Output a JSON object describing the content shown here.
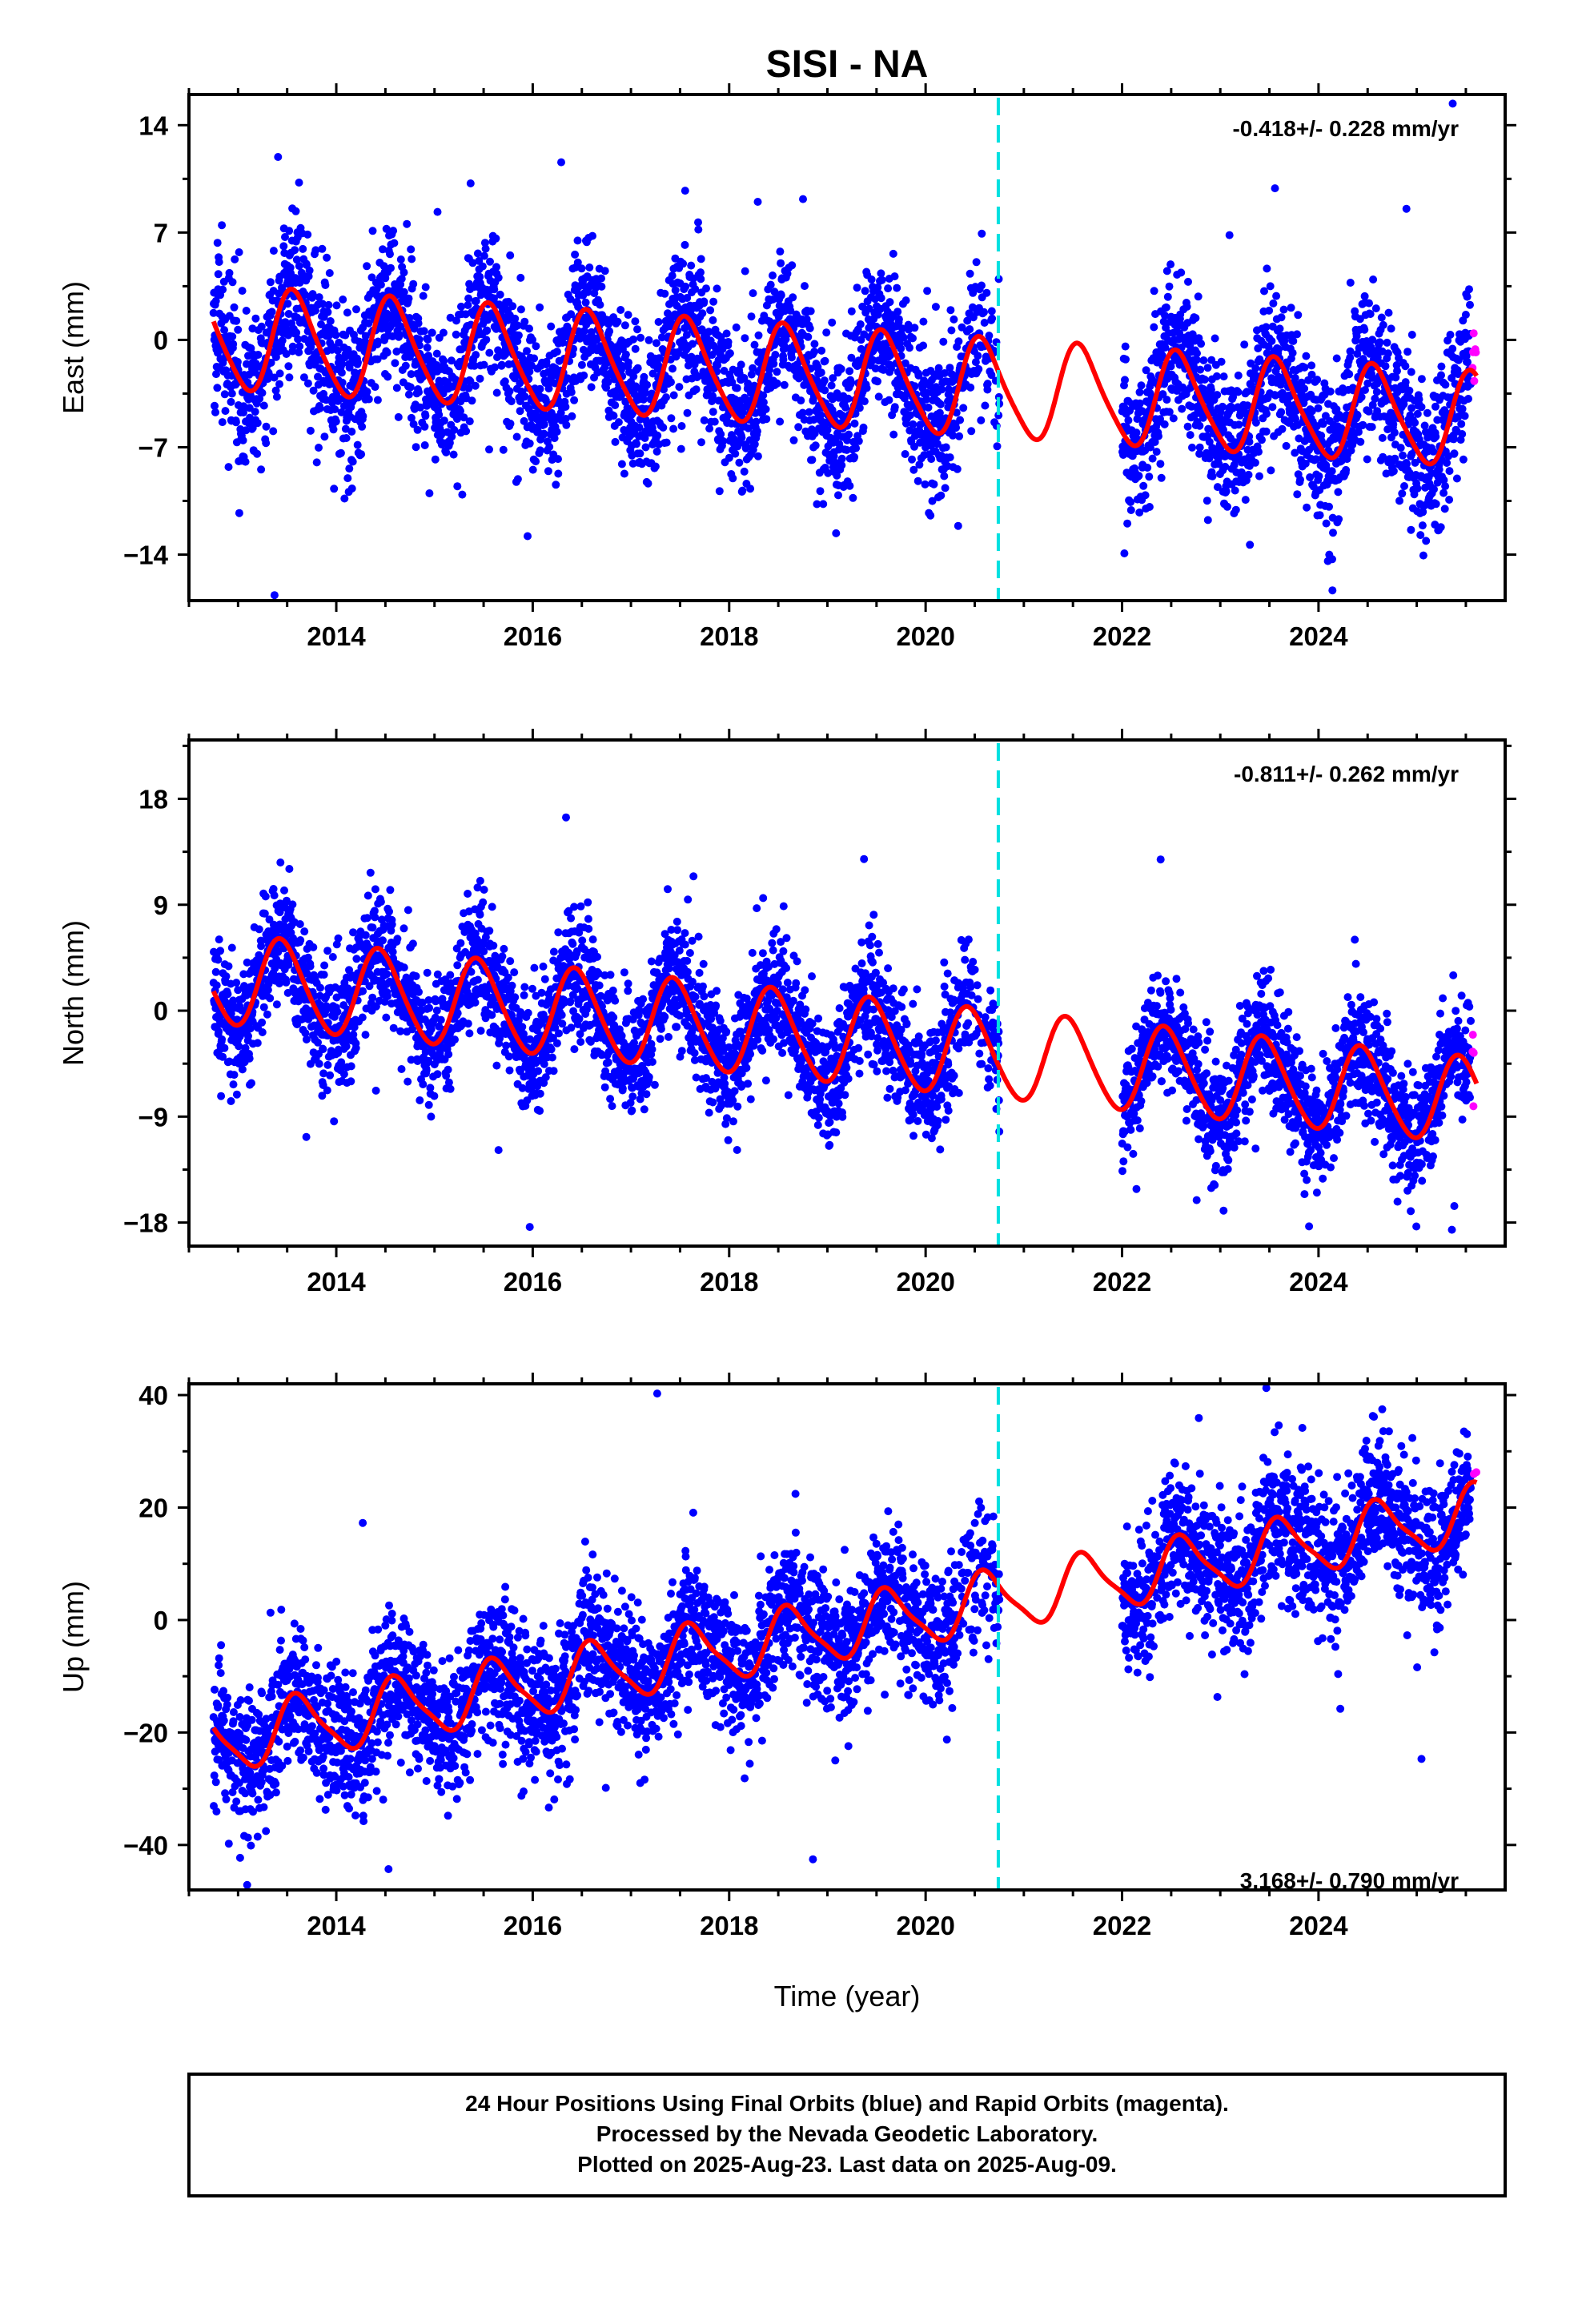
{
  "title": "SISI - NA",
  "xlabel": "Time (year)",
  "colors": {
    "final_orbits": "#0000ff",
    "rapid_orbits": "#ff00ff",
    "model_fit": "#ff0000",
    "equipment_change": "#00e0e0"
  },
  "footer": {
    "line1": "24 Hour Positions Using Final Orbits (blue) and Rapid Orbits (magenta).",
    "line2": "Processed by the Nevada Geodetic Laboratory.",
    "line3": "Plotted on 2025-Aug-23. Last data on 2025-Aug-09."
  },
  "chart_data": [
    {
      "type": "scatter",
      "component": "East",
      "ylabel": "East (mm)",
      "rate_text": "-0.418+/- 0.228 mm/yr",
      "xlim": [
        2012.5,
        2025.9
      ],
      "ylim": [
        -17,
        16
      ],
      "yticks": [
        -14,
        -7,
        0,
        7,
        14
      ],
      "xticks": [
        2014,
        2016,
        2018,
        2020,
        2022,
        2024
      ],
      "xtick_labels": [
        "2014",
        "2016",
        "2018",
        "2020",
        "2022",
        "2024"
      ],
      "event_line_x": 2020.74,
      "data_gap": [
        2020.75,
        2022.0
      ],
      "rapid_start": 2025.55,
      "model": {
        "offset": 0.0,
        "trend_mm_per_yr": -0.418,
        "annual_amp_start": 3.3,
        "annual_amp_end": 3.0,
        "phase_peak": 0.58,
        "semiannual_amp": 0.5,
        "scatter_sd": 2.5
      },
      "series": [
        {
          "name": "Final Orbits (blue)",
          "color": "#0000ff"
        },
        {
          "name": "Rapid Orbits (magenta)",
          "color": "#ff00ff"
        },
        {
          "name": "Model fit",
          "color": "#ff0000"
        }
      ]
    },
    {
      "type": "scatter",
      "component": "North",
      "ylabel": "North (mm)",
      "rate_text": "-0.811+/- 0.262 mm/yr",
      "xlim": [
        2012.5,
        2025.9
      ],
      "ylim": [
        -20,
        23
      ],
      "yticks": [
        -18,
        -9,
        0,
        9,
        18
      ],
      "xticks": [
        2014,
        2016,
        2018,
        2020,
        2022,
        2024
      ],
      "xtick_labels": [
        "2014",
        "2016",
        "2018",
        "2020",
        "2022",
        "2024"
      ],
      "event_line_x": 2020.74,
      "data_gap": [
        2020.75,
        2022.0
      ],
      "rapid_start": 2025.55,
      "model": {
        "offset": 2.5,
        "trend_mm_per_yr": -0.811,
        "annual_amp_start": 3.8,
        "annual_amp_end": 3.6,
        "phase_peak": 0.45,
        "semiannual_amp": 0.4,
        "scatter_sd": 2.6
      },
      "series": [
        {
          "name": "Final Orbits (blue)",
          "color": "#0000ff"
        },
        {
          "name": "Rapid Orbits (magenta)",
          "color": "#ff00ff"
        },
        {
          "name": "Model fit",
          "color": "#ff0000"
        }
      ]
    },
    {
      "type": "scatter",
      "component": "Up",
      "ylabel": "Up (mm)",
      "rate_text": "3.168+/- 0.790 mm/yr",
      "xlim": [
        2012.5,
        2025.9
      ],
      "ylim": [
        -48,
        42
      ],
      "yticks": [
        -40,
        -20,
        0,
        20,
        40
      ],
      "xticks": [
        2014,
        2016,
        2018,
        2020,
        2022,
        2024
      ],
      "xtick_labels": [
        "2014",
        "2016",
        "2018",
        "2020",
        "2022",
        "2024"
      ],
      "event_line_x": 2020.74,
      "data_gap": [
        2020.75,
        2022.0
      ],
      "rapid_start": 2025.55,
      "model": {
        "offset": -21.0,
        "trend_mm_per_yr": 3.168,
        "annual_amp_start": 5.5,
        "annual_amp_end": 5.0,
        "phase_peak": 0.62,
        "semiannual_amp": 1.2,
        "scatter_sd": 6.0
      },
      "series": [
        {
          "name": "Final Orbits (blue)",
          "color": "#0000ff"
        },
        {
          "name": "Rapid Orbits (magenta)",
          "color": "#ff00ff"
        },
        {
          "name": "Model fit",
          "color": "#ff0000"
        }
      ]
    }
  ]
}
